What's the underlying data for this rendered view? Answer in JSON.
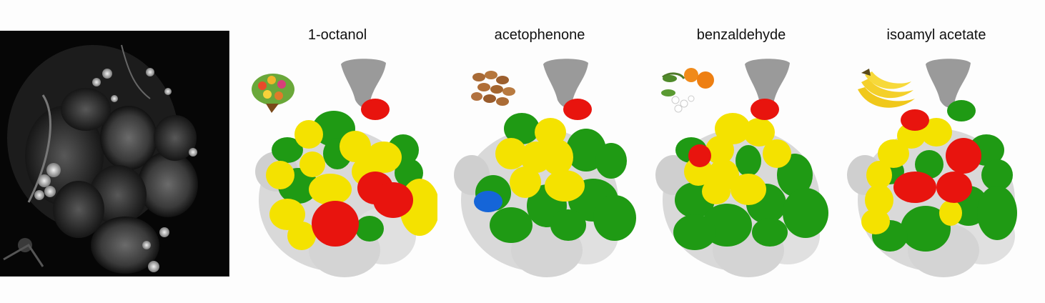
{
  "figure": {
    "background": "#fdfdfd",
    "micrograph_label": "",
    "panels": [
      {
        "id": "octanol",
        "title": "1-octanol",
        "odor_icon": "fruit-bouquet-icon"
      },
      {
        "id": "acetophenone",
        "title": "acetophenone",
        "odor_icon": "almonds-icon"
      },
      {
        "id": "benzaldehyde",
        "title": "benzaldehyde",
        "odor_icon": "orange-blossom-icon"
      },
      {
        "id": "isoamyl",
        "title": "isoamyl acetate",
        "odor_icon": "banana-icon"
      }
    ],
    "colors": {
      "red": "#e8140e",
      "yellow": "#f4e200",
      "green": "#1f9a14",
      "blue": "#1565d8",
      "white": "#d9d9d9",
      "gray_lobe": "#9a9a9a"
    }
  }
}
